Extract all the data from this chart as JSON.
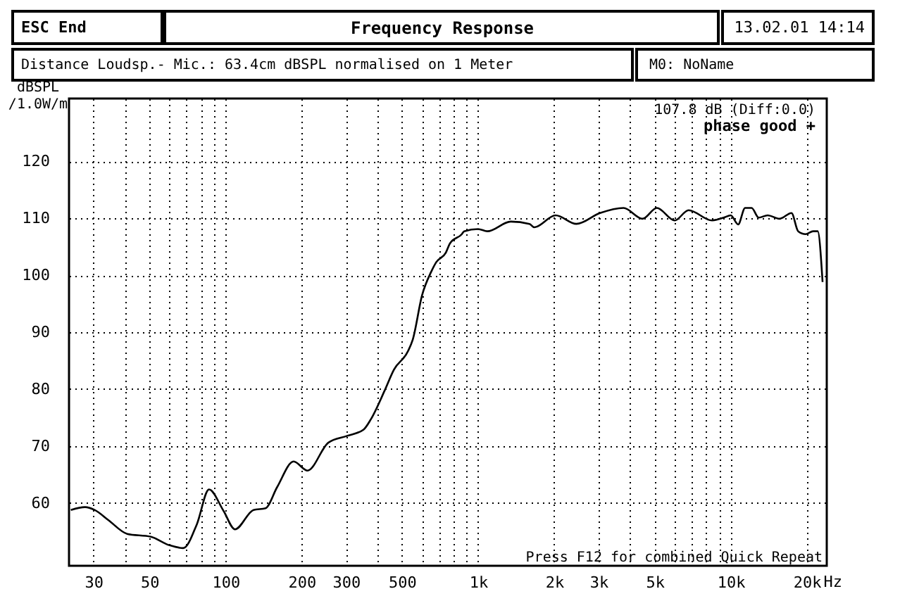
{
  "chart_data": {
    "type": "line",
    "title": "Frequency Response",
    "ylabel": "dBSPL /1.0W/m",
    "xlabel": "Hz",
    "annotations": [
      "ESC End",
      "13.02.01 14:14",
      "Distance Loudsp.- Mic.: 63.4cm dBSPL normalised on 1 Meter",
      "M0: NoName",
      "107.8 dB (Diff:0.0)",
      "phase good +",
      "Press F12 for combined Quick Repeat"
    ],
    "log": "x",
    "grid": true,
    "marker": "none",
    "line_style": "solid",
    "xlim": [
      24,
      24000
    ],
    "ylim": [
      49,
      131
    ],
    "xticks": [
      {
        "value": 30,
        "label": "30"
      },
      {
        "value": 40,
        "label": null
      },
      {
        "value": 50,
        "label": "50"
      },
      {
        "value": 60,
        "label": null
      },
      {
        "value": 70,
        "label": null
      },
      {
        "value": 80,
        "label": null
      },
      {
        "value": 90,
        "label": null
      },
      {
        "value": 100,
        "label": "100"
      },
      {
        "value": 200,
        "label": "200"
      },
      {
        "value": 300,
        "label": "300"
      },
      {
        "value": 400,
        "label": null
      },
      {
        "value": 500,
        "label": "500"
      },
      {
        "value": 600,
        "label": null
      },
      {
        "value": 700,
        "label": null
      },
      {
        "value": 800,
        "label": null
      },
      {
        "value": 900,
        "label": null
      },
      {
        "value": 1000,
        "label": "1k"
      },
      {
        "value": 2000,
        "label": "2k"
      },
      {
        "value": 3000,
        "label": "3k"
      },
      {
        "value": 4000,
        "label": null
      },
      {
        "value": 5000,
        "label": "5k"
      },
      {
        "value": 6000,
        "label": null
      },
      {
        "value": 7000,
        "label": null
      },
      {
        "value": 8000,
        "label": null
      },
      {
        "value": 9000,
        "label": null
      },
      {
        "value": 10000,
        "label": "10k"
      },
      {
        "value": 20000,
        "label": "20k"
      }
    ],
    "yticks": [
      60,
      70,
      80,
      90,
      100,
      110,
      120
    ],
    "series": [
      {
        "color": "#000000",
        "x": [
          24.4,
          27.8,
          30.3,
          34.4,
          40.8,
          50.6,
          60,
          68,
          77,
          86,
          98,
          109,
          129,
          144,
          160,
          186,
          211,
          255,
          303,
          352,
          376,
          426,
          464,
          528,
          551,
          600,
          652,
          683,
          744,
          774,
          862,
          880,
          1000,
          1087,
          1346,
          1596,
          1668,
          2027,
          2448,
          3036,
          3763,
          4478,
          5100,
          6000,
          6810,
          8430,
          9380,
          10000,
          10700,
          11400,
          12100,
          12900,
          14000,
          15600,
          17400,
          18500,
          19800,
          21200,
          22100,
          23100
        ],
        "values": [
          58.8,
          59.3,
          58.8,
          57,
          54.6,
          54.1,
          52.6,
          52.1,
          56.3,
          62.4,
          58.7,
          55.4,
          58.8,
          59.1,
          62.8,
          67.3,
          65.7,
          70.6,
          71.8,
          72.9,
          74.7,
          79.7,
          83.4,
          86.7,
          88.7,
          96.5,
          100.6,
          102.3,
          103.9,
          105.6,
          107.2,
          107.7,
          108.1,
          107.7,
          109.4,
          109,
          108.4,
          110.5,
          109,
          110.9,
          111.8,
          109.9,
          111.8,
          109.6,
          111.4,
          109.6,
          110.1,
          110.5,
          108.9,
          111.8,
          111.8,
          110.1,
          110.5,
          109.9,
          110.9,
          107.7,
          107.2,
          107.7,
          107.7,
          98.8
        ]
      }
    ]
  }
}
